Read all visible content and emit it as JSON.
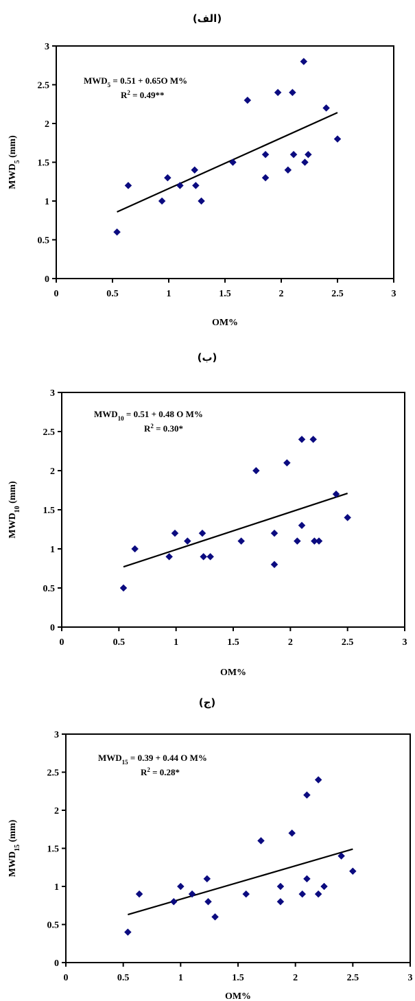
{
  "colors": {
    "marker": "#0b0b80",
    "line": "#000000",
    "frame": "#000000",
    "background": "#ffffff"
  },
  "chart_data": [
    {
      "type": "scatter",
      "panel_title": "(الف)",
      "xlabel": "OM%",
      "ylabel_main": "MWD",
      "ylabel_sub": "5",
      "ylabel_unit": " (mm)",
      "xlim": [
        0,
        3
      ],
      "ylim": [
        0,
        3
      ],
      "xticks": [
        0,
        0.5,
        1,
        1.5,
        2,
        2.5,
        3
      ],
      "yticks": [
        0,
        0.5,
        1,
        1.5,
        2,
        2.5,
        3
      ],
      "xtick_labels": [
        "0",
        "0.5",
        "1",
        "1.5",
        "2",
        "2.5",
        "3"
      ],
      "ytick_labels": [
        "0",
        "0.5",
        "1",
        "1.5",
        "2",
        "2.5",
        "3"
      ],
      "equation": {
        "lhs_main": "MWD",
        "lhs_sub": "5",
        "rhs": " = 0.51 + 0.65O M%"
      },
      "r2": {
        "main": "R",
        "sup": "2",
        "rest": " = 0.49**"
      },
      "trendline": {
        "x": [
          0.54,
          2.5
        ],
        "y": [
          0.86,
          2.14
        ]
      },
      "points": {
        "x": [
          0.54,
          0.64,
          0.94,
          0.99,
          1.1,
          1.23,
          1.24,
          1.29,
          1.57,
          1.7,
          1.86,
          1.86,
          1.97,
          2.06,
          2.1,
          2.11,
          2.2,
          2.21,
          2.24,
          2.4,
          2.5
        ],
        "y": [
          0.6,
          1.2,
          1.0,
          1.3,
          1.2,
          1.4,
          1.2,
          1.0,
          1.5,
          2.3,
          1.6,
          1.3,
          2.4,
          1.4,
          2.4,
          1.6,
          2.8,
          1.5,
          1.6,
          2.2,
          1.8
        ]
      }
    },
    {
      "type": "scatter",
      "panel_title": "(ب)",
      "xlabel": "OM%",
      "ylabel_main": "MWD",
      "ylabel_sub": "10",
      "ylabel_unit": " (mm)",
      "xlim": [
        0,
        3
      ],
      "ylim": [
        0,
        3
      ],
      "xticks": [
        0,
        0.5,
        1,
        1.5,
        2,
        2.5,
        3
      ],
      "yticks": [
        0,
        0.5,
        1,
        1.5,
        2,
        2.5,
        3
      ],
      "xtick_labels": [
        "0",
        "0.5",
        "1",
        "1.5",
        "2",
        "2.5",
        "3"
      ],
      "ytick_labels": [
        "0",
        "0.5",
        "1",
        "1.5",
        "2",
        "2.5",
        "3"
      ],
      "equation": {
        "lhs_main": "MWD",
        "lhs_sub": "10",
        "rhs": " = 0.51 + 0.48 O M%"
      },
      "r2": {
        "main": "R",
        "sup": "2",
        "rest": " = 0.30*"
      },
      "trendline": {
        "x": [
          0.54,
          2.5
        ],
        "y": [
          0.77,
          1.71
        ]
      },
      "points": {
        "x": [
          0.54,
          0.64,
          0.94,
          0.99,
          1.1,
          1.23,
          1.24,
          1.3,
          1.57,
          1.7,
          1.86,
          1.86,
          1.97,
          2.06,
          2.1,
          2.1,
          2.2,
          2.21,
          2.25,
          2.4,
          2.5
        ],
        "y": [
          0.5,
          1.0,
          0.9,
          1.2,
          1.1,
          1.2,
          0.9,
          0.9,
          1.1,
          2.0,
          1.2,
          0.8,
          2.1,
          1.1,
          2.4,
          1.3,
          2.4,
          1.1,
          1.1,
          1.7,
          1.4
        ]
      }
    },
    {
      "type": "scatter",
      "panel_title": "(ج)",
      "xlabel": "OM%",
      "ylabel_main": "MWD",
      "ylabel_sub": "15",
      "ylabel_unit": " (mm)",
      "xlim": [
        0,
        3
      ],
      "ylim": [
        0,
        3
      ],
      "xticks": [
        0,
        0.5,
        1,
        1.5,
        2,
        2.5,
        3
      ],
      "yticks": [
        0,
        0.5,
        1,
        1.5,
        2,
        2.5,
        3
      ],
      "xtick_labels": [
        "0",
        "0.5",
        "1",
        "1.5",
        "2",
        "2.5",
        "3"
      ],
      "ytick_labels": [
        "0",
        "0.5",
        "1",
        "1.5",
        "2",
        "2.5",
        "3"
      ],
      "equation": {
        "lhs_main": "MWD",
        "lhs_sub": "15",
        "rhs": " = 0.39 + 0.44 O M%"
      },
      "r2": {
        "main": "R",
        "sup": "2",
        "rest": " = 0.28*"
      },
      "trendline": {
        "x": [
          0.54,
          2.5
        ],
        "y": [
          0.63,
          1.49
        ]
      },
      "points": {
        "x": [
          0.54,
          0.64,
          0.94,
          1.0,
          1.1,
          1.23,
          1.24,
          1.3,
          1.57,
          1.7,
          1.87,
          1.87,
          1.97,
          2.06,
          2.1,
          2.1,
          2.2,
          2.2,
          2.25,
          2.4,
          2.5
        ],
        "y": [
          0.4,
          0.9,
          0.8,
          1.0,
          0.9,
          1.1,
          0.8,
          0.6,
          0.9,
          1.6,
          1.0,
          0.8,
          1.7,
          0.9,
          2.2,
          1.1,
          2.4,
          0.9,
          1.0,
          1.4,
          1.2
        ]
      }
    }
  ]
}
